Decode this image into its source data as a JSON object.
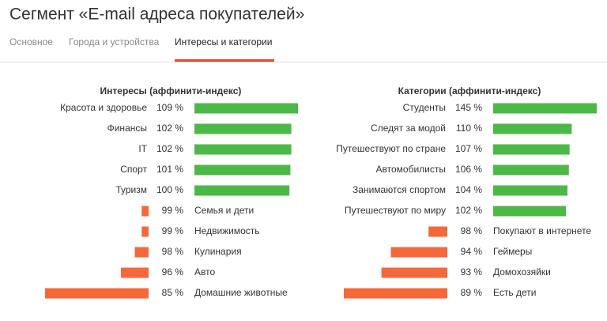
{
  "header": {
    "title": "Сегмент «E-mail адреса покупателей»"
  },
  "tabs": [
    {
      "label": "Основное",
      "active": false
    },
    {
      "label": "Города и устройства",
      "active": false
    },
    {
      "label": "Интересы и категории",
      "active": true
    }
  ],
  "chart_data": [
    {
      "type": "diverging-bar",
      "title": "Интересы (аффинити-индекс)",
      "baseline": 100,
      "categories": [
        "Красота и здоровье",
        "Финансы",
        "IT",
        "Спорт",
        "Туризм",
        "Семья и дети",
        "Недвижимость",
        "Кулинария",
        "Авто",
        "Домашние животные"
      ],
      "values": [
        109,
        102,
        102,
        101,
        100,
        99,
        99,
        98,
        96,
        85
      ],
      "value_labels": [
        "109 %",
        "102 %",
        "102 %",
        "101 %",
        "100 %",
        "99 %",
        "99 %",
        "98 %",
        "96 %",
        "85 %"
      ],
      "color_above": "#4cb848",
      "color_below": "#f4683a"
    },
    {
      "type": "diverging-bar",
      "title": "Категории (аффинити-индекс)",
      "baseline": 100,
      "categories": [
        "Студенты",
        "Следят за модой",
        "Путешествуют по стране",
        "Автомобилисты",
        "Занимаются спортом",
        "Путешествуют по миру",
        "Покупают в интернете",
        "Геймеры",
        "Домохозяйки",
        "Есть дети"
      ],
      "values": [
        145,
        110,
        107,
        106,
        104,
        102,
        98,
        94,
        93,
        89
      ],
      "value_labels": [
        "145 %",
        "110 %",
        "107 %",
        "106 %",
        "104 %",
        "102 %",
        "98 %",
        "94 %",
        "93 %",
        "89 %"
      ],
      "color_above": "#4cb848",
      "color_below": "#f4683a"
    }
  ]
}
